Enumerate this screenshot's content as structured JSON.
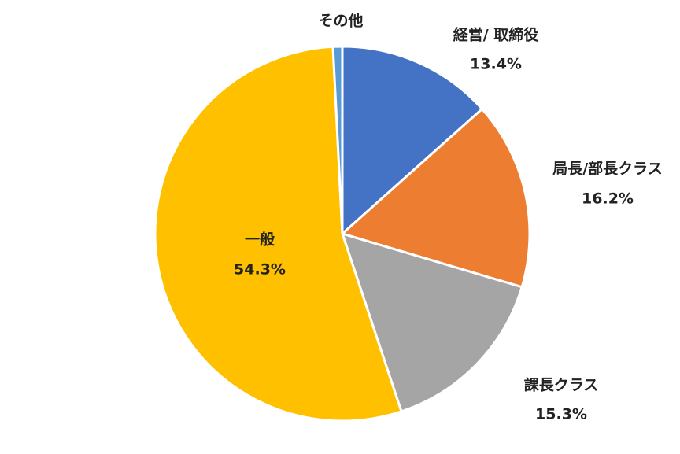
{
  "chart_data": {
    "type": "pie",
    "categories": [
      "経営/ 取締役",
      "局長/部長クラス",
      "課長クラス",
      "一般",
      "その他"
    ],
    "values": [
      13.4,
      16.2,
      15.3,
      54.3,
      0.8
    ],
    "value_labels": [
      "13.4%",
      "16.2%",
      "15.3%",
      "54.3%",
      null
    ],
    "colors": [
      "#4472c4",
      "#ed7d31",
      "#a5a5a5",
      "#ffc000",
      "#5b9bd5"
    ]
  }
}
